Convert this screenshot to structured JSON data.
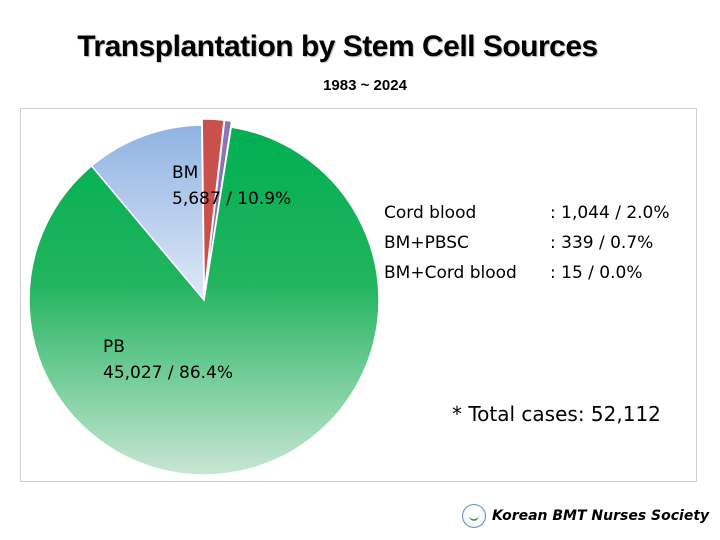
{
  "title": "Transplantation by Stem Cell Sources",
  "subtitle": "1983 ~ 2024",
  "chart_data": {
    "type": "pie",
    "title": "Transplantation by Stem Cell Sources",
    "subtitle": "1983 ~ 2024",
    "slices": [
      {
        "name": "BM",
        "value": 5687,
        "percent": 10.9,
        "label": "5,687 / 10.9%",
        "color": "#9dbde6"
      },
      {
        "name": "Cord blood",
        "value": 1044,
        "percent": 2.0,
        "label": ": 1,044 / 2.0%",
        "color": "#c9504c"
      },
      {
        "name": "BM+PBSC",
        "value": 339,
        "percent": 0.7,
        "label": ": 339 / 0.7%",
        "color": "#8a76b5"
      },
      {
        "name": "BM+Cord blood",
        "value": 15,
        "percent": 0.0,
        "label": ":  15 / 0.0%",
        "color": "#d9d9d9"
      },
      {
        "name": "PB",
        "value": 45027,
        "percent": 86.4,
        "label": "45,027 / 86.4%",
        "color": "#00b050"
      }
    ],
    "total_label": "* Total cases: 52,112"
  },
  "footer": {
    "organization": "Korean BMT Nurses Society"
  }
}
